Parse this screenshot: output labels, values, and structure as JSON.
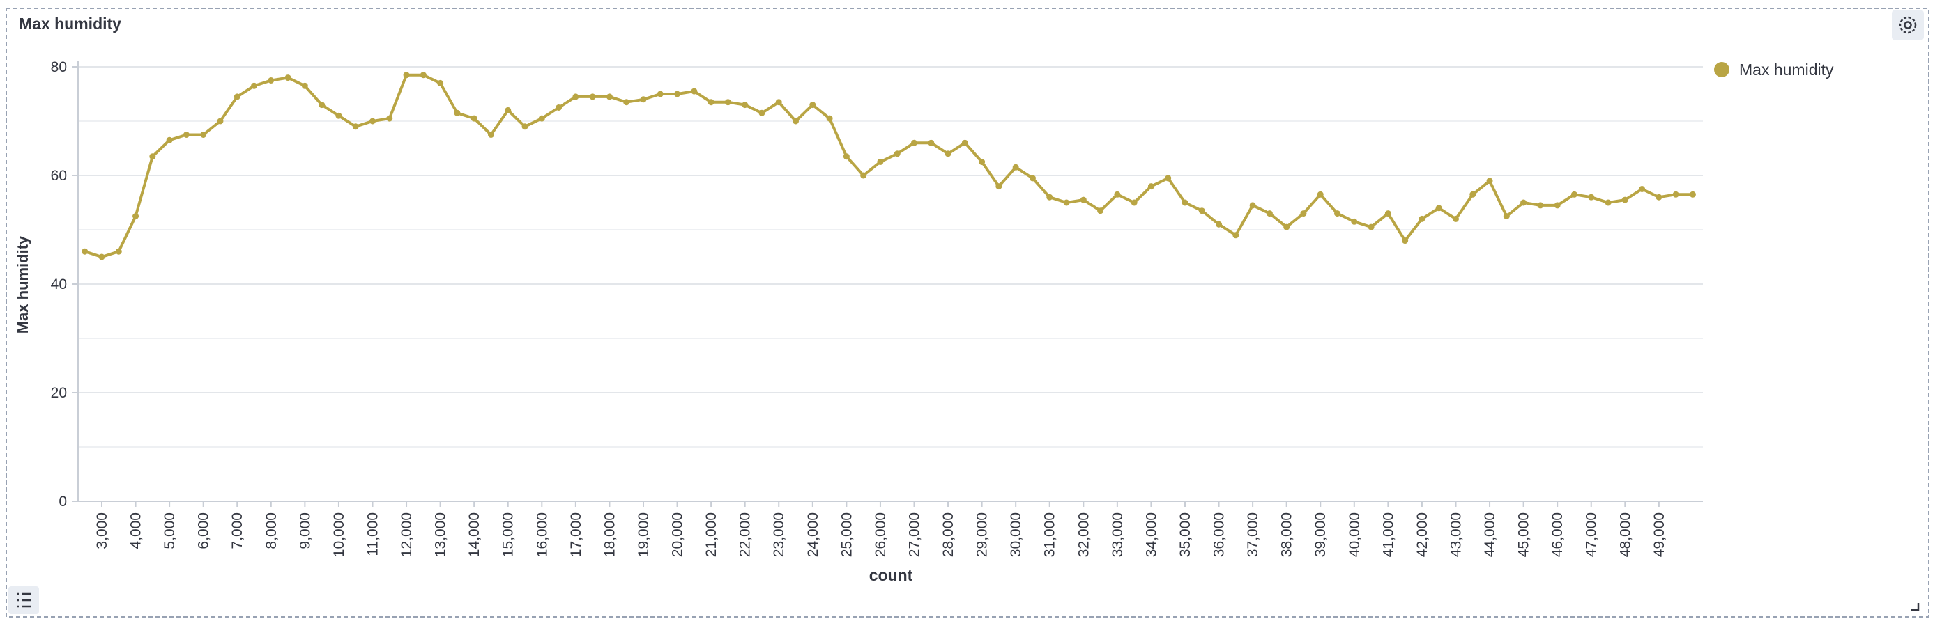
{
  "chart_data": {
    "type": "line",
    "title": "Max humidity",
    "x_label": "count",
    "y_label": "Max humidity",
    "x": [
      2500,
      3000,
      3500,
      4000,
      4500,
      5000,
      5500,
      6000,
      6500,
      7000,
      7500,
      8000,
      8500,
      9000,
      9500,
      10000,
      10500,
      11000,
      11500,
      12000,
      12500,
      13000,
      13500,
      14000,
      14500,
      15000,
      15500,
      16000,
      16500,
      17000,
      17500,
      18000,
      18500,
      19000,
      19500,
      20000,
      20500,
      21000,
      21500,
      22000,
      22500,
      23000,
      23500,
      24000,
      24500,
      25000,
      25500,
      26000,
      26500,
      27000,
      27500,
      28000,
      28500,
      29000,
      29500,
      30000,
      30500,
      31000,
      31500,
      32000,
      32500,
      33000,
      33500,
      34000,
      34500,
      35000,
      35500,
      36000,
      36500,
      37000,
      37500,
      38000,
      38500,
      39000,
      39500,
      40000,
      40500,
      41000,
      41500,
      42000,
      42500,
      43000,
      43500,
      44000,
      44500,
      45000,
      45500,
      46000,
      46500,
      47000,
      47500,
      48000,
      48500,
      49000,
      49500,
      50000
    ],
    "series": [
      {
        "name": "Max humidity",
        "color": "#b9a544",
        "values": [
          46,
          45,
          46,
          52.5,
          63.5,
          66.5,
          67.5,
          67.5,
          70,
          74.5,
          76.5,
          77.5,
          78,
          76.5,
          73,
          71,
          69,
          70,
          70.5,
          78.5,
          78.5,
          77,
          71.5,
          70.5,
          67.5,
          72,
          69,
          70.5,
          72.5,
          74.5,
          74.5,
          74.5,
          73.5,
          74,
          75,
          75,
          75.5,
          73.5,
          73.5,
          73,
          71.5,
          73.5,
          70,
          73,
          70.5,
          63.5,
          60,
          62.5,
          64,
          66,
          66,
          64,
          66,
          62.5,
          58,
          61.5,
          59.5,
          56,
          55,
          55.5,
          53.5,
          56.5,
          55,
          58,
          59.5,
          55,
          53.5,
          51,
          49,
          54.5,
          53,
          50.5,
          53,
          56.5,
          53,
          51.5,
          50.5,
          53,
          48,
          52,
          54,
          52,
          56.5,
          59,
          52.5,
          55,
          54.5,
          54.5,
          56.5,
          56,
          55,
          55.5,
          57.5,
          56,
          56.5,
          56.5
        ]
      }
    ],
    "xlim": [
      2300,
      50300
    ],
    "ylim": [
      0,
      80
    ],
    "xticks": [
      {
        "value": 3000,
        "label": "3,000"
      },
      {
        "value": 4000,
        "label": "4,000"
      },
      {
        "value": 5000,
        "label": "5,000"
      },
      {
        "value": 6000,
        "label": "6,000"
      },
      {
        "value": 7000,
        "label": "7,000"
      },
      {
        "value": 8000,
        "label": "8,000"
      },
      {
        "value": 9000,
        "label": "9,000"
      },
      {
        "value": 10000,
        "label": "10,000"
      },
      {
        "value": 11000,
        "label": "11,000"
      },
      {
        "value": 12000,
        "label": "12,000"
      },
      {
        "value": 13000,
        "label": "13,000"
      },
      {
        "value": 14000,
        "label": "14,000"
      },
      {
        "value": 15000,
        "label": "15,000"
      },
      {
        "value": 16000,
        "label": "16,000"
      },
      {
        "value": 17000,
        "label": "17,000"
      },
      {
        "value": 18000,
        "label": "18,000"
      },
      {
        "value": 19000,
        "label": "19,000"
      },
      {
        "value": 20000,
        "label": "20,000"
      },
      {
        "value": 21000,
        "label": "21,000"
      },
      {
        "value": 22000,
        "label": "22,000"
      },
      {
        "value": 23000,
        "label": "23,000"
      },
      {
        "value": 24000,
        "label": "24,000"
      },
      {
        "value": 25000,
        "label": "25,000"
      },
      {
        "value": 26000,
        "label": "26,000"
      },
      {
        "value": 27000,
        "label": "27,000"
      },
      {
        "value": 28000,
        "label": "28,000"
      },
      {
        "value": 29000,
        "label": "29,000"
      },
      {
        "value": 30000,
        "label": "30,000"
      },
      {
        "value": 31000,
        "label": "31,000"
      },
      {
        "value": 32000,
        "label": "32,000"
      },
      {
        "value": 33000,
        "label": "33,000"
      },
      {
        "value": 34000,
        "label": "34,000"
      },
      {
        "value": 35000,
        "label": "35,000"
      },
      {
        "value": 36000,
        "label": "36,000"
      },
      {
        "value": 37000,
        "label": "37,000"
      },
      {
        "value": 38000,
        "label": "38,000"
      },
      {
        "value": 39000,
        "label": "39,000"
      },
      {
        "value": 40000,
        "label": "40,000"
      },
      {
        "value": 41000,
        "label": "41,000"
      },
      {
        "value": 42000,
        "label": "42,000"
      },
      {
        "value": 43000,
        "label": "43,000"
      },
      {
        "value": 44000,
        "label": "44,000"
      },
      {
        "value": 45000,
        "label": "45,000"
      },
      {
        "value": 46000,
        "label": "46,000"
      },
      {
        "value": 47000,
        "label": "47,000"
      },
      {
        "value": 48000,
        "label": "48,000"
      },
      {
        "value": 49000,
        "label": "49,000"
      }
    ],
    "yticks": [
      0,
      20,
      40,
      60,
      80
    ],
    "minor_yticks": [
      10,
      30,
      50,
      70
    ],
    "grid": true,
    "legend": "right"
  }
}
